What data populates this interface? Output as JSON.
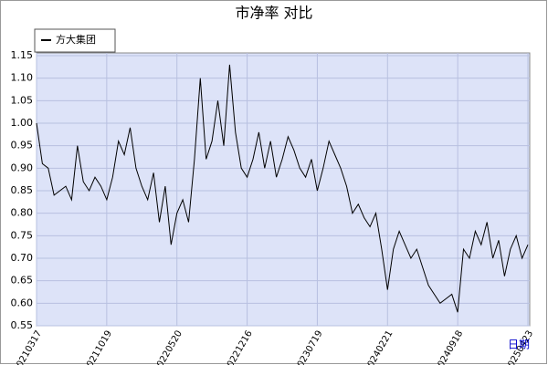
{
  "chart_data": {
    "type": "line",
    "title": "市净率  对比",
    "x_label": "日期",
    "categories": [
      "20210317",
      null,
      null,
      null,
      null,
      null,
      null,
      null,
      null,
      null,
      null,
      null,
      "20211019",
      null,
      null,
      null,
      null,
      null,
      null,
      null,
      null,
      null,
      null,
      null,
      "20220520",
      null,
      null,
      null,
      null,
      null,
      null,
      null,
      null,
      null,
      null,
      null,
      "20221216",
      null,
      null,
      null,
      null,
      null,
      null,
      null,
      null,
      null,
      null,
      null,
      "20230719",
      null,
      null,
      null,
      null,
      null,
      null,
      null,
      null,
      null,
      null,
      null,
      "20240221",
      null,
      null,
      null,
      null,
      null,
      null,
      null,
      null,
      null,
      null,
      null,
      "20240918",
      null,
      null,
      null,
      null,
      null,
      null,
      null,
      null,
      null,
      null,
      null,
      "20250423"
    ],
    "series": [
      {
        "name": "方大集团",
        "color": "#000000",
        "values": [
          1.0,
          0.91,
          0.9,
          0.84,
          0.85,
          0.86,
          0.83,
          0.95,
          0.87,
          0.85,
          0.88,
          0.86,
          0.83,
          0.88,
          0.96,
          0.93,
          0.99,
          0.9,
          0.86,
          0.83,
          0.89,
          0.78,
          0.86,
          0.73,
          0.8,
          0.83,
          0.78,
          0.92,
          1.1,
          0.92,
          0.96,
          1.05,
          0.95,
          1.13,
          0.98,
          0.9,
          0.88,
          0.92,
          0.98,
          0.9,
          0.96,
          0.88,
          0.92,
          0.97,
          0.94,
          0.9,
          0.88,
          0.92,
          0.85,
          0.9,
          0.96,
          0.93,
          0.9,
          0.86,
          0.8,
          0.82,
          0.79,
          0.77,
          0.8,
          0.72,
          0.63,
          0.72,
          0.76,
          0.73,
          0.7,
          0.72,
          0.68,
          0.64,
          0.62,
          0.6,
          0.61,
          0.62,
          0.58,
          0.72,
          0.7,
          0.76,
          0.73,
          0.78,
          0.7,
          0.74,
          0.66,
          0.72,
          0.75,
          0.7,
          0.73
        ]
      }
    ],
    "ylim": [
      0.55,
      1.15
    ],
    "yticks": [
      0.55,
      {
        "value": 0.6,
        "label": "0.60"
      },
      0.65,
      {
        "value": 0.7,
        "label": "0.70"
      },
      0.75,
      {
        "value": 0.8,
        "label": "0.80"
      },
      0.85,
      {
        "value": 0.9,
        "label": "0.90"
      },
      0.95,
      {
        "value": 1.0,
        "label": "1.00"
      },
      1.05,
      {
        "value": 1.1,
        "label": "1.10"
      },
      1.15
    ],
    "grid": true,
    "legend": "top-left"
  }
}
